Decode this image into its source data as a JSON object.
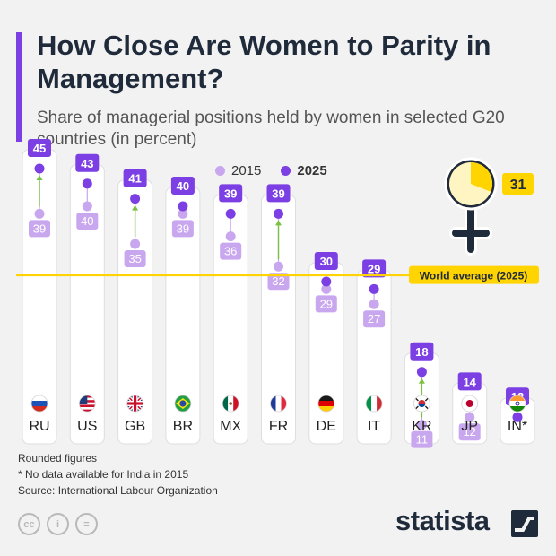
{
  "header": {
    "title": "How Close Are Women to Parity in Management?",
    "subtitle": "Share of managerial positions held by women in selected G20 countries (in percent)"
  },
  "legend": {
    "items": [
      {
        "label": "2015",
        "color": "#c9a7ef"
      },
      {
        "label": "2025",
        "color": "#7b3fe4"
      }
    ]
  },
  "world": {
    "label": "World average (2025)",
    "value": 31
  },
  "footer": {
    "note1": "Rounded figures",
    "note2": "* No data available for India in 2015",
    "source": "Source: International Labour Organization",
    "brand": "statista"
  },
  "colors": {
    "accent": "#7b3fe4",
    "light": "#c9a7ef",
    "arrow": "#7cc242",
    "world_line": "#ffd400"
  },
  "chart_data": {
    "type": "dot-plot",
    "ylabel": "Share of managerial positions held by women (in percent)",
    "categories": [
      "RU",
      "US",
      "GB",
      "BR",
      "MX",
      "FR",
      "DE",
      "IT",
      "KR",
      "JP",
      "IN*"
    ],
    "series": [
      {
        "name": "2015",
        "values": [
          39,
          40,
          35,
          39,
          36,
          32,
          29,
          27,
          11,
          12,
          null
        ]
      },
      {
        "name": "2025",
        "values": [
          45,
          43,
          41,
          40,
          39,
          39,
          30,
          29,
          18,
          14,
          12
        ]
      }
    ],
    "flags": [
      "flag-russia-icon",
      "flag-usa-icon",
      "flag-uk-icon",
      "flag-brazil-icon",
      "flag-mexico-icon",
      "flag-france-icon",
      "flag-germany-icon",
      "flag-italy-icon",
      "flag-south-korea-icon",
      "flag-japan-icon",
      "flag-india-icon"
    ],
    "reference_line": {
      "label": "World average (2025)",
      "value": 31
    }
  }
}
